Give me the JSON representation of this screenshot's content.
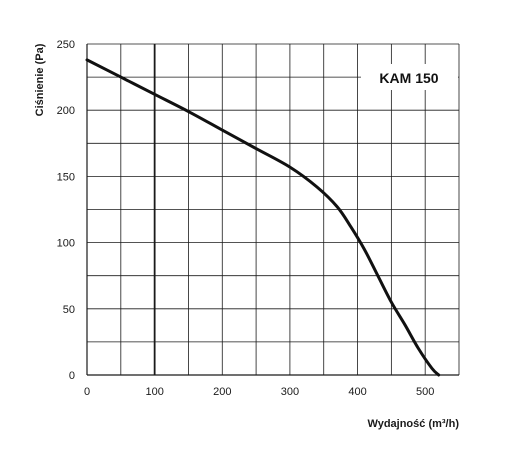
{
  "chart_data": {
    "type": "line",
    "xlabel": "Wydajność (m³/h)",
    "ylabel": "Ciśnienie (Pa)",
    "xlim": [
      0,
      550
    ],
    "ylim": [
      0,
      250
    ],
    "x_ticks": [
      0,
      100,
      200,
      300,
      400,
      500
    ],
    "y_ticks": [
      0,
      50,
      100,
      150,
      200,
      250
    ],
    "grid": true,
    "emphasized_gridline_x": 100,
    "legend_position": "top-right",
    "series": [
      {
        "name": "KAM 150",
        "x": [
          0,
          50,
          100,
          150,
          200,
          250,
          300,
          340,
          370,
          390,
          410,
          430,
          450,
          470,
          490,
          510,
          520
        ],
        "y": [
          238,
          225,
          212,
          199,
          185,
          171,
          157,
          142,
          127,
          112,
          95,
          75,
          55,
          38,
          20,
          5,
          0
        ]
      }
    ],
    "colors": {
      "background": "#ffffff",
      "grid": "#1a1a1a",
      "curve": "#111111",
      "text": "#1a1a1a"
    }
  }
}
